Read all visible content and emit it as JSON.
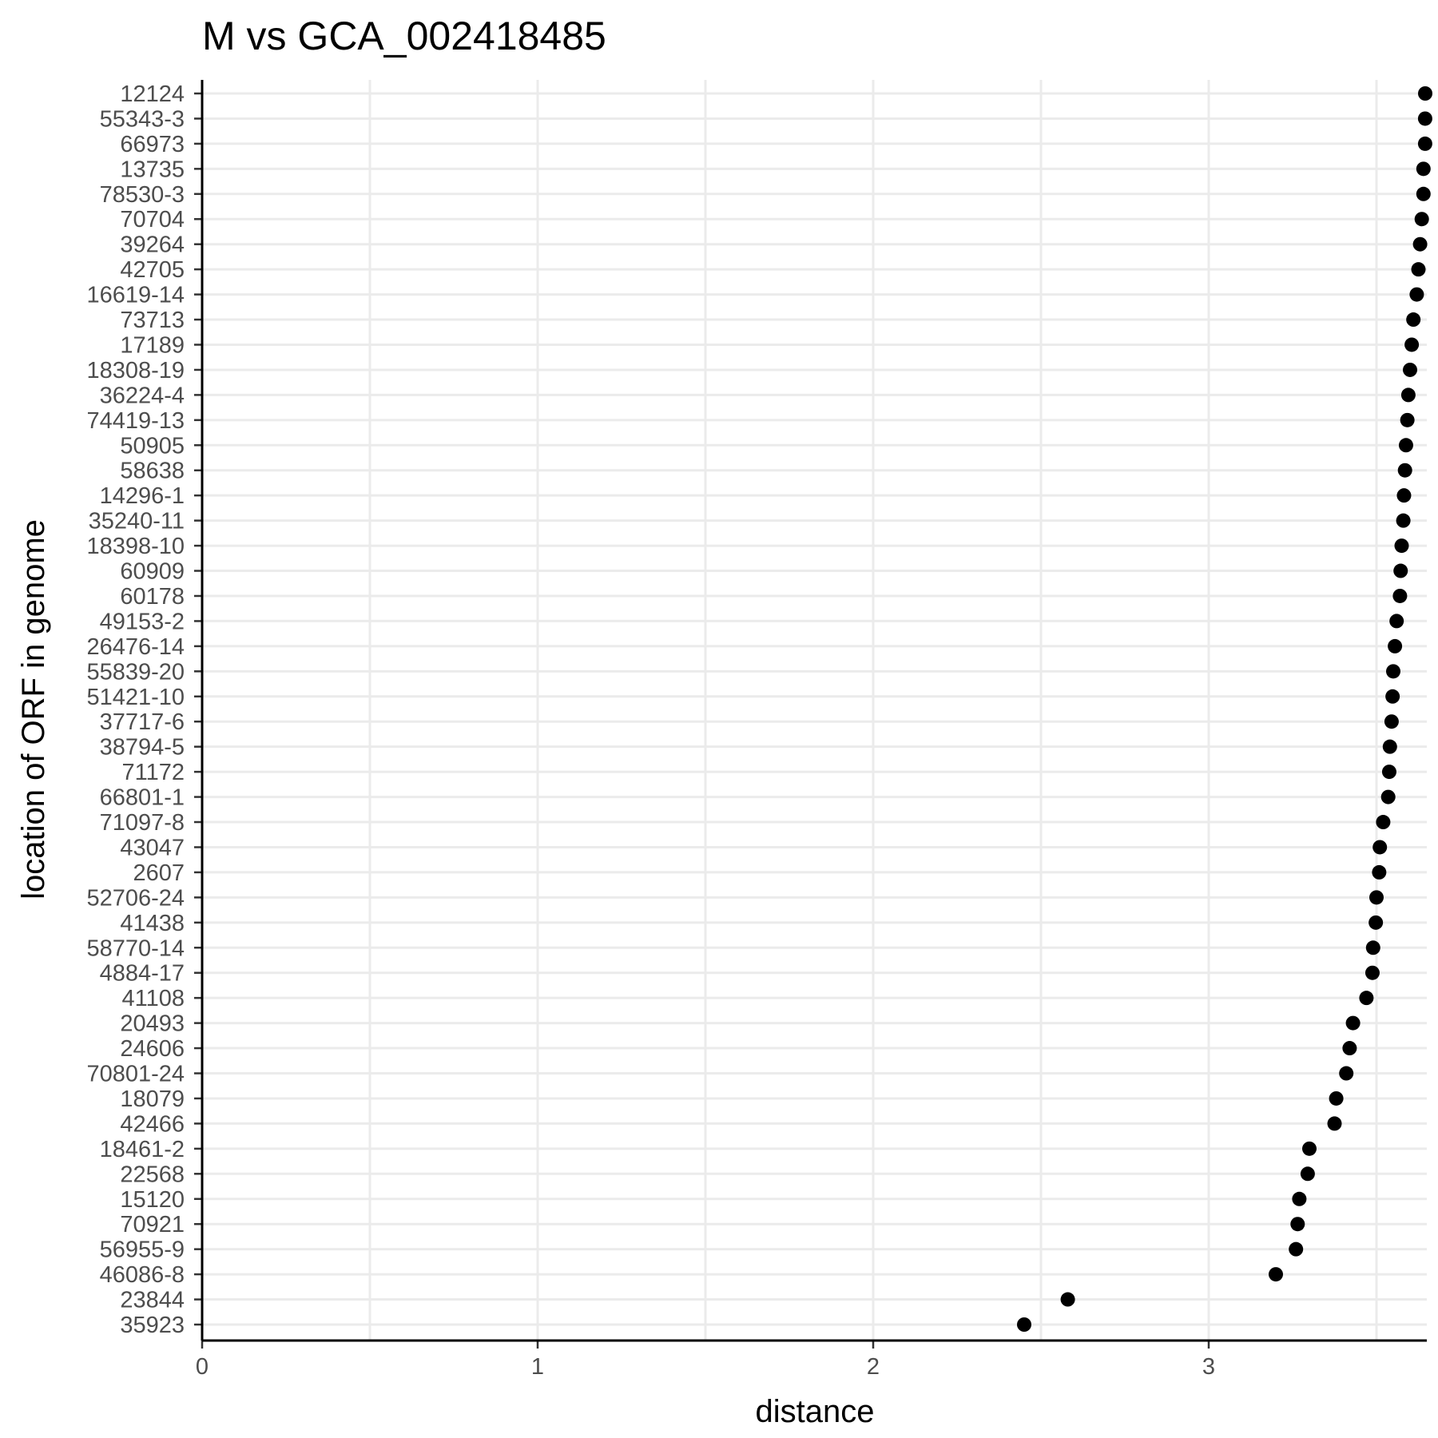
{
  "chart_data": {
    "type": "scatter",
    "title": "M vs GCA_002418485",
    "xlabel": "distance",
    "ylabel": "location of ORF in genome",
    "xlim": [
      0,
      3.65
    ],
    "x_ticks": [
      0,
      1,
      2,
      3
    ],
    "x_tick_labels": [
      "0",
      "1",
      "2",
      "3"
    ],
    "grid": true,
    "categories": [
      "12124",
      "55343-3",
      "66973",
      "13735",
      "78530-3",
      "70704",
      "39264",
      "42705",
      "16619-14",
      "73713",
      "17189",
      "18308-19",
      "36224-4",
      "74419-13",
      "50905",
      "58638",
      "14296-1",
      "35240-11",
      "18398-10",
      "60909",
      "60178",
      "49153-2",
      "26476-14",
      "55839-20",
      "51421-10",
      "37717-6",
      "38794-5",
      "71172",
      "66801-1",
      "71097-8",
      "43047",
      "2607",
      "52706-24",
      "41438",
      "58770-14",
      "4884-17",
      "41108",
      "20493",
      "24606",
      "70801-24",
      "18079",
      "42466",
      "18461-2",
      "22568",
      "15120",
      "70921",
      "56955-9",
      "46086-8",
      "23844",
      "35923"
    ],
    "values": [
      3.65,
      3.645,
      3.645,
      3.64,
      3.64,
      3.635,
      3.63,
      3.625,
      3.62,
      3.61,
      3.605,
      3.6,
      3.595,
      3.592,
      3.588,
      3.585,
      3.582,
      3.58,
      3.575,
      3.572,
      3.57,
      3.56,
      3.555,
      3.55,
      3.548,
      3.545,
      3.54,
      3.538,
      3.535,
      3.52,
      3.51,
      3.508,
      3.5,
      3.498,
      3.49,
      3.488,
      3.47,
      3.43,
      3.42,
      3.41,
      3.38,
      3.375,
      3.3,
      3.295,
      3.27,
      3.265,
      3.26,
      3.2,
      2.58,
      2.45
    ]
  }
}
